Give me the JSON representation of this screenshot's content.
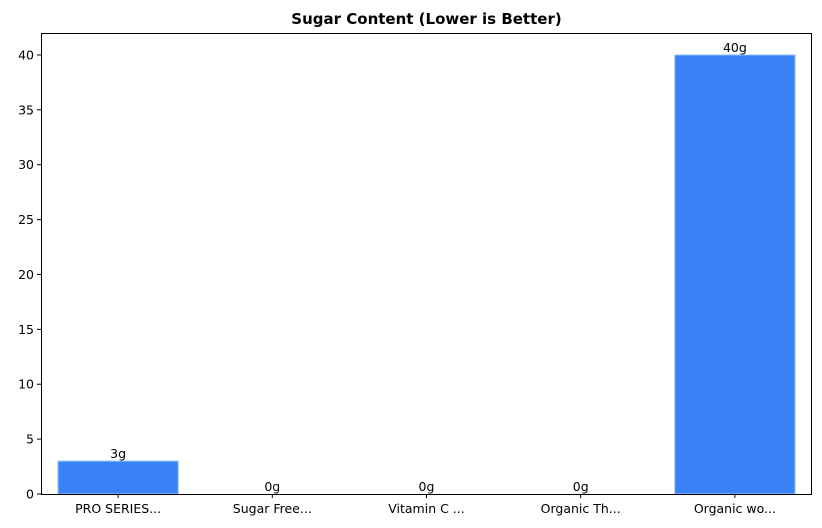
{
  "chart_data": {
    "type": "bar",
    "title": "Sugar Content (Lower is Better)",
    "xlabel": "",
    "ylabel": "",
    "categories": [
      "PRO SERIES...",
      "Sugar Free...",
      "Vitamin C ...",
      "Organic Th...",
      "Organic wo..."
    ],
    "values": [
      3,
      0,
      0,
      0,
      40
    ],
    "data_labels": [
      "3g",
      "0g",
      "0g",
      "0g",
      "40g"
    ],
    "ylim": [
      0,
      42
    ],
    "yticks": [
      0,
      5,
      10,
      15,
      20,
      25,
      30,
      35,
      40
    ],
    "grid": false,
    "legend": "none",
    "colors": {
      "bar": "#3b82f6",
      "bar_edge": "#93c5fd"
    }
  }
}
